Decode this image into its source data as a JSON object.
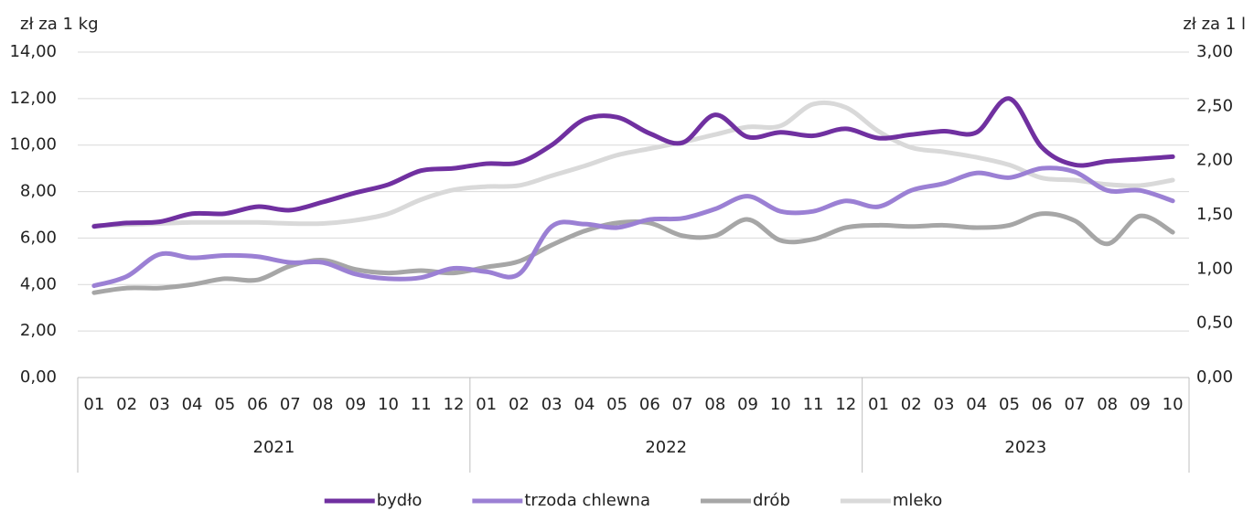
{
  "chart_data": {
    "type": "line",
    "y_label": "zł za 1 kg",
    "y2_label": "zł za 1 l",
    "groups": [
      {
        "label": "2021",
        "categories": [
          "01",
          "02",
          "03",
          "04",
          "05",
          "06",
          "07",
          "08",
          "09",
          "10",
          "11",
          "12"
        ]
      },
      {
        "label": "2022",
        "categories": [
          "01",
          "02",
          "03",
          "04",
          "05",
          "06",
          "07",
          "08",
          "09",
          "10",
          "11",
          "12"
        ]
      },
      {
        "label": "2023",
        "categories": [
          "01",
          "02",
          "03",
          "04",
          "05",
          "06",
          "07",
          "08",
          "09",
          "10"
        ]
      }
    ],
    "ylim": [
      0,
      14
    ],
    "yticks": [
      {
        "value": 0,
        "label": "0,00"
      },
      {
        "value": 2,
        "label": "2,00"
      },
      {
        "value": 4,
        "label": "4,00"
      },
      {
        "value": 6,
        "label": "6,00"
      },
      {
        "value": 8,
        "label": "8,00"
      },
      {
        "value": 10,
        "label": "10,00"
      },
      {
        "value": 12,
        "label": "12,00"
      },
      {
        "value": 14,
        "label": "14,00"
      }
    ],
    "y2lim": [
      0,
      3
    ],
    "y2ticks": [
      {
        "value": 0,
        "label": "0,00"
      },
      {
        "value": 0.5,
        "label": "0,50"
      },
      {
        "value": 1,
        "label": "1,00"
      },
      {
        "value": 1.5,
        "label": "1,50"
      },
      {
        "value": 2,
        "label": "2,00"
      },
      {
        "value": 2.5,
        "label": "2,50"
      },
      {
        "value": 3,
        "label": "3,00"
      }
    ],
    "grid": true,
    "legend": "bottom",
    "series": [
      {
        "name": "bydło",
        "color": "#7030a0",
        "values": [
          6.5,
          6.65,
          6.7,
          7.05,
          7.05,
          7.35,
          7.2,
          7.55,
          7.95,
          8.3,
          8.9,
          9.0,
          9.2,
          9.25,
          10.0,
          11.1,
          11.2,
          10.5,
          10.1,
          11.3,
          10.35,
          10.55,
          10.4,
          10.7,
          10.3,
          10.45,
          10.6,
          10.55,
          12.0,
          9.9,
          9.15,
          9.3,
          9.4,
          9.5
        ]
      },
      {
        "name": "trzoda chlewna",
        "color": "#9b80d4",
        "values": [
          3.95,
          4.35,
          5.3,
          5.15,
          5.25,
          5.2,
          4.95,
          4.95,
          4.45,
          4.25,
          4.3,
          4.7,
          4.55,
          4.45,
          6.5,
          6.6,
          6.45,
          6.8,
          6.85,
          7.25,
          7.8,
          7.15,
          7.15,
          7.6,
          7.35,
          8.05,
          8.35,
          8.8,
          8.6,
          9.0,
          8.85,
          8.05,
          8.05,
          7.6
        ]
      },
      {
        "name": "drób",
        "color": "#a6a6a6",
        "values": [
          3.65,
          3.85,
          3.85,
          4.0,
          4.25,
          4.2,
          4.8,
          5.05,
          4.65,
          4.5,
          4.6,
          4.5,
          4.75,
          5.0,
          5.7,
          6.3,
          6.65,
          6.65,
          6.1,
          6.1,
          6.8,
          5.9,
          5.95,
          6.45,
          6.55,
          6.5,
          6.55,
          6.45,
          6.55,
          7.05,
          6.75,
          5.75,
          6.95,
          6.25
        ]
      },
      {
        "name": "mleko",
        "color": "#d9d9d9",
        "axis": "y2",
        "values": [
          1.4,
          1.41,
          1.42,
          1.43,
          1.43,
          1.43,
          1.42,
          1.42,
          1.45,
          1.51,
          1.64,
          1.73,
          1.76,
          1.77,
          1.86,
          1.95,
          2.05,
          2.11,
          2.17,
          2.24,
          2.31,
          2.32,
          2.52,
          2.49,
          2.27,
          2.12,
          2.08,
          2.03,
          1.96,
          1.84,
          1.82,
          1.78,
          1.77,
          1.82
        ]
      }
    ]
  }
}
